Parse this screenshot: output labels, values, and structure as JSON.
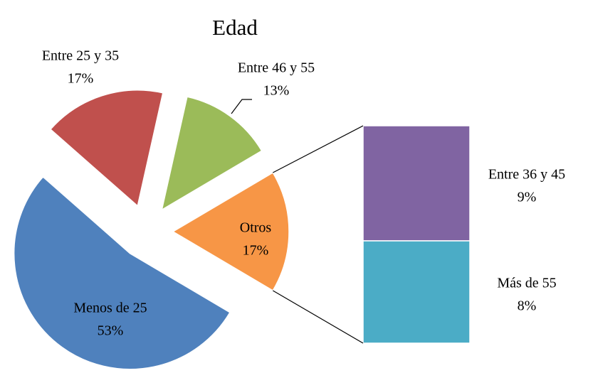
{
  "chart_data": {
    "type": "pie",
    "title": "Edad",
    "categories": [
      "Menos de 25",
      "Entre 25 y 35",
      "Entre 46 y 55",
      "Otros"
    ],
    "values": [
      53,
      17,
      13,
      17
    ],
    "value_labels": [
      "53%",
      "17%",
      "13%",
      "17%"
    ],
    "colors": [
      "#4f81bd",
      "#c0504d",
      "#9bbb59",
      "#f79646"
    ],
    "bar": {
      "categories": [
        "Entre 36 y 45",
        "Más de 55"
      ],
      "values": [
        9,
        8
      ],
      "value_labels": [
        "9%",
        "8%"
      ],
      "colors": [
        "#8064a2",
        "#4bacc6"
      ]
    }
  }
}
